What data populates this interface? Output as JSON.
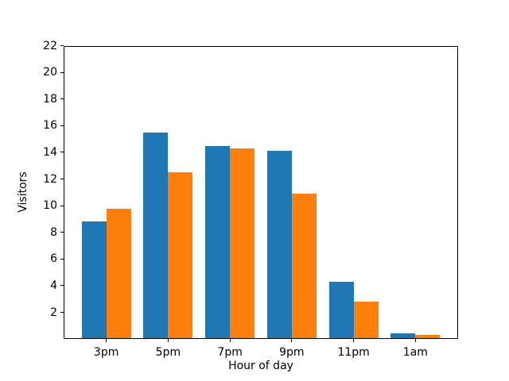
{
  "chart_data": {
    "type": "bar",
    "title": "",
    "categories": [
      "3pm",
      "5pm",
      "7pm",
      "9pm",
      "11pm",
      "1am"
    ],
    "series": [
      {
        "name": "blue-series",
        "color": "#1f77b4",
        "values": [
          8.8,
          15.5,
          14.5,
          14.1,
          4.3,
          0.4
        ]
      },
      {
        "name": "orange-series",
        "color": "#ff7f0e",
        "values": [
          9.8,
          12.5,
          14.3,
          10.9,
          2.8,
          0.3
        ]
      }
    ],
    "xlabel": "Hour of day",
    "ylabel": "Visitors",
    "ylim": [
      0,
      22
    ],
    "yticks": [
      2,
      4,
      6,
      8,
      10,
      12,
      14,
      16,
      18,
      20,
      22
    ],
    "bar_width": 0.4,
    "grid": false,
    "legend": null,
    "axis_color": "#000000",
    "background_color": "#ffffff"
  }
}
